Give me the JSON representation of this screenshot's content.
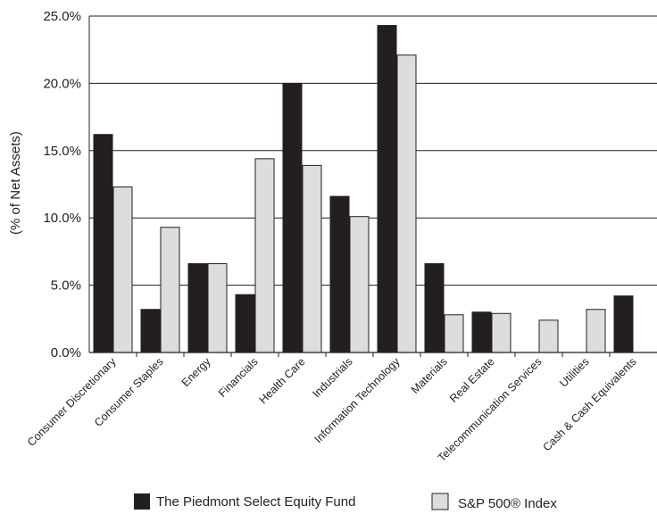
{
  "chart_data": {
    "type": "bar",
    "title": "",
    "xlabel": "",
    "ylabel": "(% of Net Assets)",
    "ylim": [
      0,
      25
    ],
    "yticks": [
      "0.0%",
      "5.0%",
      "10.0%",
      "15.0%",
      "20.0%",
      "25.0%"
    ],
    "grid": true,
    "legend_position": "bottom",
    "categories": [
      "Consumer Discretionary",
      "Consumer Staples",
      "Energy",
      "Financials",
      "Health Care",
      "Industrials",
      "Information Technology",
      "Materials",
      "Real Estate",
      "Telecommunication Services",
      "Utilities",
      "Cash & Cash Equivalents"
    ],
    "series": [
      {
        "name": "The Piedmont Select Equity Fund",
        "color": "#231f20",
        "values": [
          16.2,
          3.2,
          6.6,
          4.3,
          20.0,
          11.6,
          24.3,
          6.6,
          3.0,
          0.0,
          0.0,
          4.2
        ]
      },
      {
        "name": "S&P 500® Index",
        "color": "#dcdddf",
        "values": [
          12.3,
          9.3,
          6.6,
          14.4,
          13.9,
          10.1,
          22.1,
          2.8,
          2.9,
          2.4,
          3.2,
          0.0
        ]
      }
    ]
  }
}
